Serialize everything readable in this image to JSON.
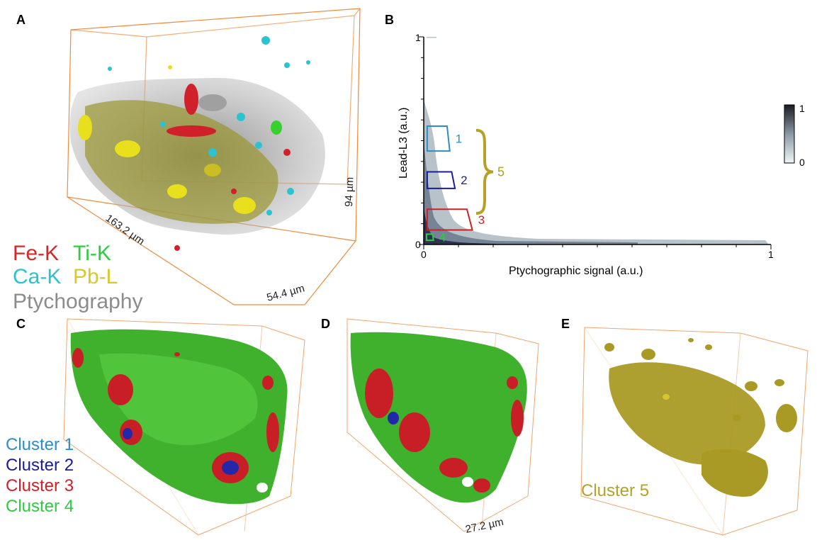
{
  "panels": {
    "a": {
      "letter": "A"
    },
    "b": {
      "letter": "B"
    },
    "c": {
      "letter": "C"
    },
    "d": {
      "letter": "D"
    },
    "e": {
      "letter": "E"
    }
  },
  "panel_a": {
    "dim_x": "163.2 µm",
    "dim_y": "54.4 µm",
    "dim_z": "94 µm",
    "legend": [
      {
        "label": "Fe-K",
        "color": "#d62728"
      },
      {
        "label": "Ti-K",
        "color": "#2ecc40"
      },
      {
        "label": "Ca-K",
        "color": "#2bc3cf"
      },
      {
        "label": "Pb-L",
        "color": "#d8c92a"
      },
      {
        "label": "Ptychography",
        "color": "#8c8c8c"
      }
    ]
  },
  "chart_data": {
    "type": "heatmap",
    "xlabel": "Ptychographic signal (a.u.)",
    "ylabel": "Lead-L3 (a.u.)",
    "xlim": [
      0,
      1
    ],
    "ylim": [
      0,
      1
    ],
    "x_tick_labels": [
      "0",
      "1"
    ],
    "y_tick_labels": [
      "0",
      "1"
    ],
    "colorbar": {
      "min_label": "0",
      "max_label": "1",
      "colors": [
        "#e8f2f2",
        "#222222"
      ]
    },
    "regions": [
      {
        "name": "1",
        "color": "#2a8fc6",
        "x": [
          0.01,
          0.075
        ],
        "y": [
          0.45,
          0.57
        ]
      },
      {
        "name": "2",
        "color": "#1a1e96",
        "x": [
          0.01,
          0.09
        ],
        "y": [
          0.27,
          0.35
        ]
      },
      {
        "name": "3",
        "color": "#d21f26",
        "x": [
          0.01,
          0.14
        ],
        "y": [
          0.07,
          0.17
        ]
      },
      {
        "name": "4",
        "color": "#2ecc40",
        "x": [
          0.008,
          0.028
        ],
        "y": [
          0.02,
          0.05
        ]
      }
    ],
    "brace": {
      "label": "5",
      "color": "#b3a227",
      "y": [
        0.15,
        0.55
      ]
    }
  },
  "panel_c": {
    "legend": [
      {
        "label": "Cluster 1",
        "color": "#2a8fc6"
      },
      {
        "label": "Cluster 2",
        "color": "#1a1e96"
      },
      {
        "label": "Cluster 3",
        "color": "#d21f26"
      },
      {
        "label": "Cluster 4",
        "color": "#2ecc40"
      }
    ]
  },
  "panel_d": {
    "dim": "27.2 µm"
  },
  "panel_e": {
    "legend_label": "Cluster 5",
    "legend_color": "#b3a227"
  }
}
